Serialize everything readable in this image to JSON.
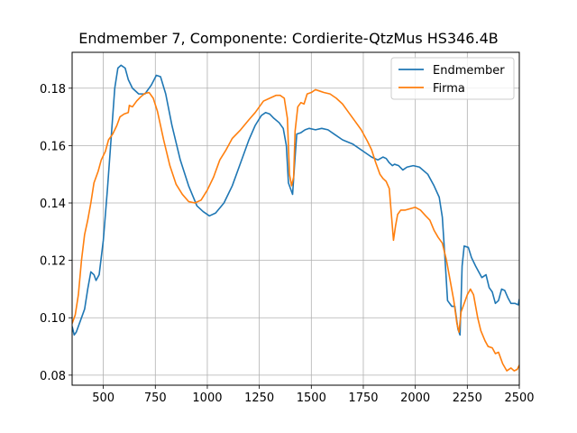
{
  "chart_data": {
    "type": "line",
    "title": "Endmember 7, Componente: Cordierite-QtzMus HS346.4B",
    "xlabel": "",
    "ylabel": "",
    "xlim": [
      350,
      2500
    ],
    "ylim": [
      0.0765,
      0.1925
    ],
    "x_ticks": [
      500,
      750,
      1000,
      1250,
      1500,
      1750,
      2000,
      2250,
      2500
    ],
    "y_ticks": [
      0.08,
      0.1,
      0.12,
      0.14,
      0.16,
      0.18
    ],
    "grid": true,
    "legend_position": "top-right",
    "colors": {
      "Endmember": "#1f77b4",
      "Firma": "#ff7f0e"
    },
    "series": [
      {
        "name": "Endmember",
        "points": [
          [
            350,
            0.097
          ],
          [
            360,
            0.094
          ],
          [
            370,
            0.095
          ],
          [
            390,
            0.099
          ],
          [
            410,
            0.103
          ],
          [
            425,
            0.11
          ],
          [
            440,
            0.116
          ],
          [
            455,
            0.115
          ],
          [
            465,
            0.113
          ],
          [
            480,
            0.115
          ],
          [
            500,
            0.127
          ],
          [
            520,
            0.145
          ],
          [
            540,
            0.165
          ],
          [
            555,
            0.18
          ],
          [
            570,
            0.187
          ],
          [
            585,
            0.188
          ],
          [
            605,
            0.187
          ],
          [
            620,
            0.183
          ],
          [
            640,
            0.18
          ],
          [
            670,
            0.178
          ],
          [
            700,
            0.178
          ],
          [
            730,
            0.181
          ],
          [
            755,
            0.1845
          ],
          [
            775,
            0.184
          ],
          [
            800,
            0.178
          ],
          [
            830,
            0.167
          ],
          [
            870,
            0.155
          ],
          [
            910,
            0.146
          ],
          [
            950,
            0.139
          ],
          [
            980,
            0.137
          ],
          [
            1010,
            0.1355
          ],
          [
            1040,
            0.1365
          ],
          [
            1080,
            0.14
          ],
          [
            1120,
            0.146
          ],
          [
            1160,
            0.154
          ],
          [
            1200,
            0.162
          ],
          [
            1230,
            0.167
          ],
          [
            1260,
            0.1705
          ],
          [
            1280,
            0.1715
          ],
          [
            1300,
            0.171
          ],
          [
            1320,
            0.1695
          ],
          [
            1345,
            0.168
          ],
          [
            1365,
            0.166
          ],
          [
            1380,
            0.16
          ],
          [
            1390,
            0.147
          ],
          [
            1400,
            0.145
          ],
          [
            1410,
            0.143
          ],
          [
            1420,
            0.154
          ],
          [
            1430,
            0.164
          ],
          [
            1450,
            0.1645
          ],
          [
            1470,
            0.1655
          ],
          [
            1490,
            0.166
          ],
          [
            1520,
            0.1655
          ],
          [
            1550,
            0.166
          ],
          [
            1580,
            0.1655
          ],
          [
            1610,
            0.164
          ],
          [
            1650,
            0.162
          ],
          [
            1700,
            0.1605
          ],
          [
            1750,
            0.158
          ],
          [
            1790,
            0.156
          ],
          [
            1820,
            0.155
          ],
          [
            1845,
            0.156
          ],
          [
            1860,
            0.1555
          ],
          [
            1875,
            0.154
          ],
          [
            1890,
            0.153
          ],
          [
            1900,
            0.1535
          ],
          [
            1920,
            0.153
          ],
          [
            1940,
            0.1515
          ],
          [
            1960,
            0.1525
          ],
          [
            1990,
            0.153
          ],
          [
            2020,
            0.1525
          ],
          [
            2060,
            0.15
          ],
          [
            2090,
            0.146
          ],
          [
            2115,
            0.142
          ],
          [
            2130,
            0.135
          ],
          [
            2145,
            0.118
          ],
          [
            2155,
            0.106
          ],
          [
            2175,
            0.104
          ],
          [
            2190,
            0.104
          ],
          [
            2205,
            0.096
          ],
          [
            2215,
            0.094
          ],
          [
            2225,
            0.118
          ],
          [
            2235,
            0.125
          ],
          [
            2255,
            0.1245
          ],
          [
            2270,
            0.121
          ],
          [
            2290,
            0.118
          ],
          [
            2305,
            0.116
          ],
          [
            2320,
            0.114
          ],
          [
            2340,
            0.115
          ],
          [
            2355,
            0.1105
          ],
          [
            2370,
            0.109
          ],
          [
            2385,
            0.105
          ],
          [
            2400,
            0.106
          ],
          [
            2415,
            0.11
          ],
          [
            2430,
            0.1095
          ],
          [
            2445,
            0.107
          ],
          [
            2460,
            0.105
          ],
          [
            2480,
            0.105
          ],
          [
            2495,
            0.1045
          ],
          [
            2500,
            0.1065
          ]
        ]
      },
      {
        "name": "Firma",
        "points": [
          [
            350,
            0.098
          ],
          [
            365,
            0.101
          ],
          [
            380,
            0.108
          ],
          [
            395,
            0.12
          ],
          [
            410,
            0.129
          ],
          [
            425,
            0.134
          ],
          [
            440,
            0.14
          ],
          [
            455,
            0.147
          ],
          [
            475,
            0.151
          ],
          [
            490,
            0.155
          ],
          [
            510,
            0.158
          ],
          [
            525,
            0.162
          ],
          [
            545,
            0.164
          ],
          [
            565,
            0.167
          ],
          [
            580,
            0.17
          ],
          [
            600,
            0.171
          ],
          [
            620,
            0.1715
          ],
          [
            625,
            0.174
          ],
          [
            640,
            0.1735
          ],
          [
            660,
            0.1755
          ],
          [
            680,
            0.177
          ],
          [
            700,
            0.1782
          ],
          [
            720,
            0.1785
          ],
          [
            740,
            0.1765
          ],
          [
            760,
            0.172
          ],
          [
            790,
            0.162
          ],
          [
            820,
            0.153
          ],
          [
            850,
            0.1465
          ],
          [
            880,
            0.143
          ],
          [
            910,
            0.1405
          ],
          [
            940,
            0.14
          ],
          [
            970,
            0.141
          ],
          [
            1000,
            0.1445
          ],
          [
            1030,
            0.149
          ],
          [
            1060,
            0.155
          ],
          [
            1090,
            0.1585
          ],
          [
            1120,
            0.1625
          ],
          [
            1160,
            0.1655
          ],
          [
            1200,
            0.169
          ],
          [
            1230,
            0.1715
          ],
          [
            1270,
            0.1755
          ],
          [
            1300,
            0.1765
          ],
          [
            1330,
            0.1775
          ],
          [
            1350,
            0.1775
          ],
          [
            1370,
            0.1765
          ],
          [
            1385,
            0.1695
          ],
          [
            1395,
            0.15
          ],
          [
            1405,
            0.146
          ],
          [
            1415,
            0.149
          ],
          [
            1422,
            0.165
          ],
          [
            1435,
            0.1735
          ],
          [
            1450,
            0.175
          ],
          [
            1465,
            0.1745
          ],
          [
            1480,
            0.178
          ],
          [
            1500,
            0.1785
          ],
          [
            1520,
            0.1795
          ],
          [
            1540,
            0.179
          ],
          [
            1560,
            0.1785
          ],
          [
            1590,
            0.178
          ],
          [
            1620,
            0.1765
          ],
          [
            1650,
            0.1745
          ],
          [
            1680,
            0.1715
          ],
          [
            1710,
            0.1685
          ],
          [
            1740,
            0.1655
          ],
          [
            1770,
            0.1615
          ],
          [
            1790,
            0.1585
          ],
          [
            1810,
            0.154
          ],
          [
            1830,
            0.15
          ],
          [
            1845,
            0.1485
          ],
          [
            1860,
            0.1475
          ],
          [
            1875,
            0.145
          ],
          [
            1885,
            0.136
          ],
          [
            1895,
            0.127
          ],
          [
            1905,
            0.132
          ],
          [
            1915,
            0.136
          ],
          [
            1930,
            0.1375
          ],
          [
            1950,
            0.1375
          ],
          [
            1975,
            0.138
          ],
          [
            2000,
            0.1385
          ],
          [
            2025,
            0.1375
          ],
          [
            2050,
            0.1355
          ],
          [
            2070,
            0.134
          ],
          [
            2090,
            0.1305
          ],
          [
            2110,
            0.128
          ],
          [
            2130,
            0.126
          ],
          [
            2150,
            0.12
          ],
          [
            2170,
            0.112
          ],
          [
            2185,
            0.106
          ],
          [
            2200,
            0.098
          ],
          [
            2210,
            0.095
          ],
          [
            2220,
            0.102
          ],
          [
            2235,
            0.105
          ],
          [
            2250,
            0.108
          ],
          [
            2265,
            0.11
          ],
          [
            2280,
            0.108
          ],
          [
            2300,
            0.1
          ],
          [
            2315,
            0.0955
          ],
          [
            2335,
            0.092
          ],
          [
            2350,
            0.09
          ],
          [
            2370,
            0.0895
          ],
          [
            2385,
            0.0875
          ],
          [
            2400,
            0.088
          ],
          [
            2420,
            0.084
          ],
          [
            2440,
            0.0815
          ],
          [
            2460,
            0.0825
          ],
          [
            2475,
            0.0815
          ],
          [
            2490,
            0.082
          ],
          [
            2500,
            0.0835
          ]
        ]
      }
    ]
  }
}
